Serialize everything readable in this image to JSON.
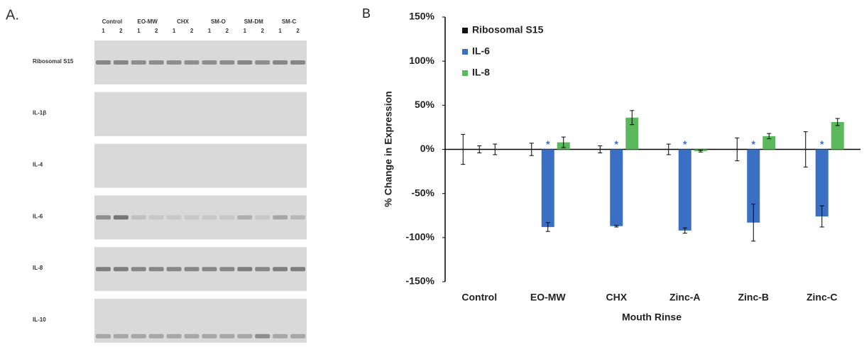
{
  "panel_a": {
    "label": "A.",
    "groups": [
      "Control",
      "EO-MW",
      "CHX",
      "SM-O",
      "SM-DM",
      "SM-C"
    ],
    "lanes": [
      "1",
      "2"
    ],
    "rows": [
      "Ribosomal S15",
      "IL-1β",
      "IL-4",
      "IL-6",
      "IL-8",
      "IL-10"
    ]
  },
  "chart_data": {
    "type": "bar",
    "panel_label": "B",
    "x_label": "Mouth Rinse",
    "y_label": "% Change in Expression",
    "categories": [
      "Control",
      "EO-MW",
      "CHX",
      "Zinc-A",
      "Zinc-B",
      "Zinc-C"
    ],
    "series": [
      {
        "name": "Ribosomal S15",
        "color": "#111111",
        "values": [
          0,
          0,
          0,
          0,
          0,
          0
        ],
        "errors": [
          17,
          7,
          4,
          6,
          13,
          20
        ]
      },
      {
        "name": "IL-6",
        "color": "#3a6fc4",
        "values": [
          0,
          -88,
          -87,
          -92,
          -83,
          -76
        ],
        "errors": [
          4,
          5,
          1,
          3,
          21,
          12
        ]
      },
      {
        "name": "IL-8",
        "color": "#5cb85c",
        "values": [
          0,
          8,
          36,
          -2,
          15,
          31
        ],
        "errors": [
          6,
          6,
          8,
          1,
          3,
          4
        ]
      }
    ],
    "significance": [
      null,
      "*",
      "*",
      "*",
      "*",
      "*"
    ],
    "ylim": [
      -150,
      150
    ],
    "yticks": [
      {
        "value": -150,
        "label": "-150%"
      },
      {
        "value": -100,
        "label": "-100%"
      },
      {
        "value": -50,
        "label": "-50%"
      },
      {
        "value": 0,
        "label": "0%"
      },
      {
        "value": 50,
        "label": "50%"
      },
      {
        "value": 100,
        "label": "100%"
      },
      {
        "value": 150,
        "label": "150%"
      }
    ],
    "legend": "upper left"
  }
}
